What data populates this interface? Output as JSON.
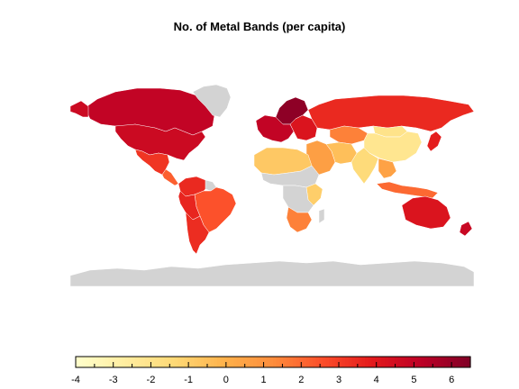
{
  "title": "No. of Metal Bands (per capita)",
  "legend": {
    "min": -4,
    "max": 6.5,
    "ticks": [
      "-4",
      "-3",
      "-2",
      "-1",
      "0",
      "1",
      "2",
      "3",
      "4",
      "5",
      "6"
    ],
    "colors": [
      "#FFFFCC",
      "#FFEDA0",
      "#FED976",
      "#FEB24C",
      "#FD8D3C",
      "#FC4E2A",
      "#E31A1C",
      "#BD0026",
      "#800026"
    ]
  },
  "no_data_color": "#D3D3D3",
  "regions": [
    {
      "id": "canada",
      "value": 5.0
    },
    {
      "id": "usa",
      "value": 4.7
    },
    {
      "id": "alaska",
      "value": 4.7
    },
    {
      "id": "greenland",
      "value": null
    },
    {
      "id": "mexico",
      "value": 3.2
    },
    {
      "id": "central-america",
      "value": 2.2
    },
    {
      "id": "colombia-venezuela",
      "value": 3.5
    },
    {
      "id": "brazil",
      "value": 2.5
    },
    {
      "id": "peru-bolivia",
      "value": 3.6
    },
    {
      "id": "argentina-chile",
      "value": 3.4
    },
    {
      "id": "guianas",
      "value": null
    },
    {
      "id": "scandinavia",
      "value": 6.2
    },
    {
      "id": "western-europe",
      "value": 5.0
    },
    {
      "id": "eastern-europe",
      "value": 4.2
    },
    {
      "id": "russia",
      "value": 3.5
    },
    {
      "id": "kazakhstan",
      "value": 1.5
    },
    {
      "id": "china",
      "value": -2.2
    },
    {
      "id": "mongolia",
      "value": -2.0
    },
    {
      "id": "japan",
      "value": 3.8
    },
    {
      "id": "middle-east",
      "value": 0.6
    },
    {
      "id": "iran",
      "value": -0.5
    },
    {
      "id": "india",
      "value": -1.5
    },
    {
      "id": "southeast-asia",
      "value": 0.5
    },
    {
      "id": "indonesia",
      "value": 2.0
    },
    {
      "id": "north-africa",
      "value": -0.8
    },
    {
      "id": "sahel-africa",
      "value": null
    },
    {
      "id": "east-africa",
      "value": -1.0
    },
    {
      "id": "central-africa",
      "value": null
    },
    {
      "id": "southern-africa",
      "value": 1.5
    },
    {
      "id": "madagascar",
      "value": null
    },
    {
      "id": "australia",
      "value": 4.2
    },
    {
      "id": "new-zealand",
      "value": 4.8
    },
    {
      "id": "antarctica",
      "value": null
    }
  ]
}
